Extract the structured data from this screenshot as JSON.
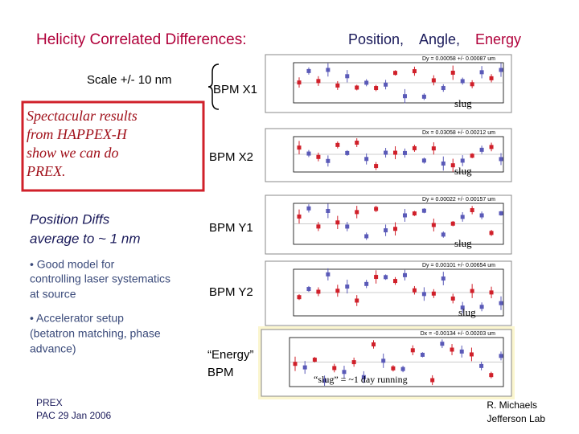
{
  "header": {
    "title": "Helicity  Correlated  Differences:",
    "parts": [
      "Position,",
      "Angle,",
      "Energy"
    ]
  },
  "scale_note": "Scale  +/- 10 nm",
  "highlight_box": [
    "Spectacular  results",
    "from   HAPPEX-H",
    "show  we  can  do",
    "PREX."
  ],
  "position_note": [
    "Position  Diffs",
    "average  to   ~ 1  nm"
  ],
  "bullets": [
    [
      "•  Good  model  for",
      "controlling laser systematics",
      "at source"
    ],
    [
      "•  Accelerator setup",
      "(betatron matching, phase",
      "advance)"
    ]
  ],
  "plots": [
    {
      "label": [
        "BPM   X1"
      ],
      "header": "Dy = 0.00058 +/- 0.00087 um",
      "axis": "slug"
    },
    {
      "label": [
        "BPM   X2"
      ],
      "header": "Dx = 0.03058 +/- 0.00212 um",
      "axis": "slug"
    },
    {
      "label": [
        "BPM   Y1"
      ],
      "header": "Dy = 0.00022 +/- 0.00157 um",
      "axis": "slug"
    },
    {
      "label": [
        "BPM   Y2"
      ],
      "header": "Dy = 0.00101 +/- 0.00654 um",
      "axis": "slug"
    },
    {
      "label": [
        "“Energy”",
        "BPM"
      ],
      "header": "Dx = -0.00134 +/- 0.00203 um",
      "axis": "“slug” = ~1 day running"
    }
  ],
  "footer_left": [
    "PREX",
    "PAC 29   Jan 2006"
  ],
  "footer_right": [
    "R.  Michaels",
    "Jefferson  Lab"
  ]
}
